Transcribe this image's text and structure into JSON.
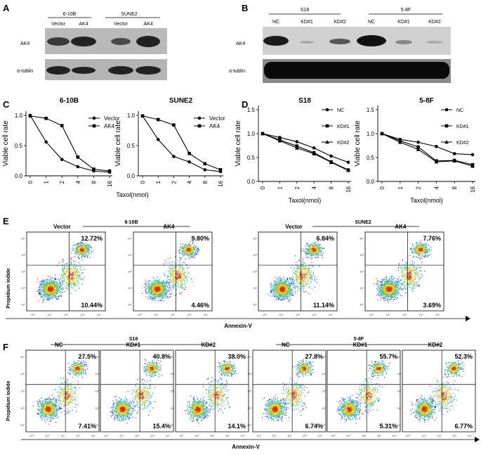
{
  "panels": {
    "A": {
      "letter": "A",
      "groups": [
        "6-10B",
        "SUNE2"
      ],
      "lanes": [
        "Vector",
        "AK4",
        "Vector",
        "AK4"
      ],
      "rows": [
        "AK4",
        "α-tublin"
      ]
    },
    "B": {
      "letter": "B",
      "groups": [
        "S18",
        "5-8F"
      ],
      "lanes": [
        "NC",
        "KD#1",
        "KD#2",
        "NC",
        "KD#1",
        "KD#2"
      ],
      "rows": [
        "AK4",
        "α-tublin"
      ]
    },
    "C": {
      "letter": "C"
    },
    "D": {
      "letter": "D"
    },
    "E": {
      "letter": "E",
      "groups": [
        "6-10B",
        "SUNE2"
      ],
      "plots": [
        {
          "title": "Vector",
          "ur": "12.72%",
          "lr": "10.44%"
        },
        {
          "title": "AK4",
          "ur": "9.80%",
          "lr": "4.46%"
        },
        {
          "title": "Vector",
          "ur": "6.84%",
          "lr": "11.14%"
        },
        {
          "title": "AK4",
          "ur": "7.76%",
          "lr": "3.69%"
        }
      ],
      "ylabel": "Propidium Iodide",
      "xlabel": "Annexin-V"
    },
    "F": {
      "letter": "F",
      "groups": [
        "S18",
        "5-8F"
      ],
      "plots": [
        {
          "title": "NC",
          "ur": "27.5%",
          "lr": "7.41%"
        },
        {
          "title": "KD#1",
          "ur": "40.8%",
          "lr": "15.4%"
        },
        {
          "title": "KD#2",
          "ur": "38.0%",
          "lr": "14.1%"
        },
        {
          "title": "NC",
          "ur": "27.8%",
          "lr": "6.74%"
        },
        {
          "title": "KD#1",
          "ur": "55.7%",
          "lr": "5.31%"
        },
        {
          "title": "KD#2",
          "ur": "52.3%",
          "lr": "6.77%"
        }
      ],
      "ylabel": "Propidium Iodide",
      "xlabel": "Annexin-V"
    }
  },
  "chart_data": [
    {
      "type": "line",
      "title": "6-10B",
      "xlabel": "Taxol(nmol)",
      "ylabel": "Viable cell rate",
      "categories": [
        "0",
        "1",
        "2",
        "4",
        "8",
        "16"
      ],
      "ylim": [
        0,
        1.0
      ],
      "yticks": [
        "0.0",
        "0.5",
        "1.0"
      ],
      "series": [
        {
          "name": "Vector",
          "marker": "circle",
          "values": [
            1.0,
            0.56,
            0.27,
            0.15,
            0.08,
            0.06
          ]
        },
        {
          "name": "AK4",
          "marker": "square",
          "values": [
            0.99,
            0.95,
            0.83,
            0.31,
            0.11,
            0.08
          ]
        }
      ]
    },
    {
      "type": "line",
      "title": "SUNE2",
      "xlabel": "",
      "ylabel": "Viable cell rate",
      "categories": [
        "0",
        "1",
        "2",
        "4",
        "8",
        "16"
      ],
      "ylim": [
        0,
        1.0
      ],
      "yticks": [
        "0.0",
        "0.5",
        "1.0"
      ],
      "series": [
        {
          "name": "Vector",
          "marker": "circle",
          "values": [
            0.99,
            0.6,
            0.32,
            0.23,
            0.1,
            0.07
          ]
        },
        {
          "name": "AK4",
          "marker": "square",
          "values": [
            0.99,
            0.93,
            0.84,
            0.37,
            0.2,
            0.1
          ]
        }
      ]
    },
    {
      "type": "line",
      "title": "S18",
      "xlabel": "Taxol(nmol)",
      "ylabel": "Viable cell rate",
      "categories": [
        "0",
        "1",
        "2",
        "4",
        "8",
        "16"
      ],
      "ylim": [
        0,
        1.5
      ],
      "yticks": [
        "0.0",
        "0.5",
        "1.0",
        "1.5"
      ],
      "series": [
        {
          "name": "NC",
          "marker": "circle",
          "values": [
            1.0,
            0.92,
            0.83,
            0.7,
            0.53,
            0.4
          ]
        },
        {
          "name": "KD#1",
          "marker": "square",
          "values": [
            1.0,
            0.87,
            0.74,
            0.6,
            0.41,
            0.24
          ]
        },
        {
          "name": "KD#2",
          "marker": "triangle",
          "values": [
            1.0,
            0.85,
            0.7,
            0.58,
            0.4,
            0.23
          ]
        }
      ]
    },
    {
      "type": "line",
      "title": "5-8F",
      "xlabel": "Taxol(nmol)",
      "ylabel": "Viable cell rate",
      "categories": [
        "0",
        "1",
        "2",
        "4",
        "8",
        "16"
      ],
      "ylim": [
        0,
        1.5
      ],
      "yticks": [
        "0.0",
        "0.5",
        "1.0",
        "1.5"
      ],
      "series": [
        {
          "name": "NC",
          "marker": "circle",
          "values": [
            1.0,
            0.88,
            0.82,
            0.73,
            0.58,
            0.56
          ]
        },
        {
          "name": "KD#1",
          "marker": "square",
          "values": [
            1.0,
            0.85,
            0.72,
            0.43,
            0.44,
            0.35
          ]
        },
        {
          "name": "KD#2",
          "marker": "triangle",
          "values": [
            1.0,
            0.82,
            0.67,
            0.41,
            0.43,
            0.32
          ]
        }
      ]
    }
  ]
}
